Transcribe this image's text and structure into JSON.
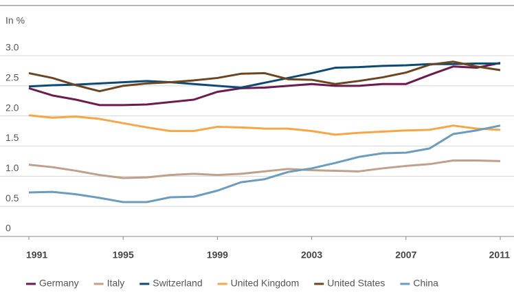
{
  "chart_data": {
    "type": "line",
    "y_label": "In %",
    "x": [
      1991,
      1992,
      1993,
      1994,
      1995,
      1996,
      1997,
      1998,
      1999,
      2000,
      2001,
      2002,
      2003,
      2004,
      2005,
      2006,
      2007,
      2008,
      2009,
      2010,
      2011
    ],
    "xlim": [
      1991,
      2011
    ],
    "xticks": [
      1991,
      1995,
      1999,
      2003,
      2007,
      2011
    ],
    "ylim": [
      0,
      3.0
    ],
    "yticks": [
      0,
      0.5,
      {
        "value": 1,
        "label": "1.0"
      },
      1.5,
      {
        "value": 2,
        "label": "2.0"
      },
      2.5,
      {
        "value": 3,
        "label": "3.0"
      }
    ],
    "grid": true,
    "series": [
      {
        "name": "Germany",
        "color": "#6d1a4e",
        "values": [
          2.46,
          2.34,
          2.27,
          2.18,
          2.18,
          2.19,
          2.23,
          2.27,
          2.4,
          2.46,
          2.47,
          2.5,
          2.53,
          2.5,
          2.5,
          2.53,
          2.53,
          2.68,
          2.82,
          2.8,
          2.88
        ]
      },
      {
        "name": "Italy",
        "color": "#c0a08a",
        "values": [
          1.19,
          1.15,
          1.09,
          1.02,
          0.97,
          0.98,
          1.02,
          1.04,
          1.02,
          1.04,
          1.08,
          1.12,
          1.1,
          1.09,
          1.08,
          1.13,
          1.17,
          1.2,
          1.26,
          1.26,
          1.25
        ]
      },
      {
        "name": "Switzerland",
        "color": "#0d4a73",
        "values": [
          2.49,
          2.51,
          2.52,
          2.54,
          2.56,
          2.58,
          2.56,
          2.53,
          2.5,
          2.47,
          2.55,
          2.63,
          2.71,
          2.8,
          2.81,
          2.83,
          2.84,
          2.86,
          2.86,
          2.87,
          2.87
        ]
      },
      {
        "name": "United Kingdom",
        "color": "#f5a748",
        "values": [
          2.01,
          1.97,
          1.99,
          1.95,
          1.88,
          1.81,
          1.75,
          1.75,
          1.82,
          1.81,
          1.79,
          1.79,
          1.75,
          1.69,
          1.72,
          1.74,
          1.76,
          1.77,
          1.84,
          1.79,
          1.77
        ]
      },
      {
        "name": "United States",
        "color": "#6b4420",
        "values": [
          2.71,
          2.63,
          2.51,
          2.41,
          2.5,
          2.54,
          2.56,
          2.59,
          2.63,
          2.7,
          2.71,
          2.61,
          2.6,
          2.53,
          2.58,
          2.64,
          2.72,
          2.85,
          2.9,
          2.82,
          2.76
        ]
      },
      {
        "name": "China",
        "color": "#6b9bbf",
        "values": [
          0.73,
          0.74,
          0.7,
          0.64,
          0.57,
          0.57,
          0.65,
          0.66,
          0.76,
          0.9,
          0.95,
          1.07,
          1.13,
          1.22,
          1.32,
          1.38,
          1.39,
          1.46,
          1.7,
          1.76,
          1.84
        ]
      }
    ]
  }
}
